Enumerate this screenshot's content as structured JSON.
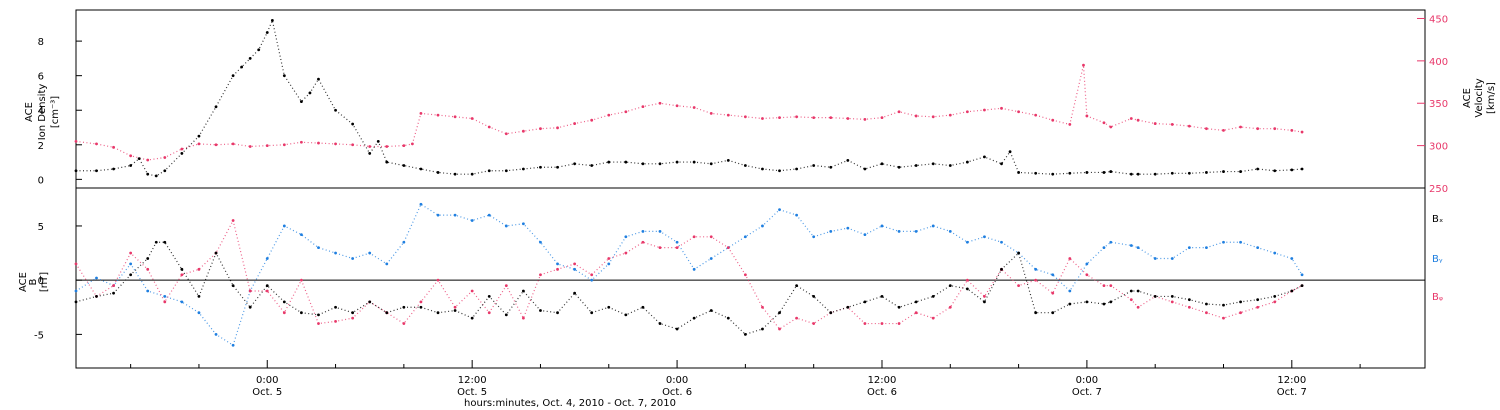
{
  "figure": {
    "xlabel": "hours:minutes, Oct.  4, 2010 - Oct.  7, 2010",
    "x_ticks": [
      {
        "value": 24,
        "line1": "0:00",
        "line2": "Oct. 5"
      },
      {
        "value": 36,
        "line1": "12:00",
        "line2": "Oct. 5"
      },
      {
        "value": 48,
        "line1": "0:00",
        "line2": "Oct. 6"
      },
      {
        "value": 60,
        "line1": "12:00",
        "line2": "Oct. 6"
      },
      {
        "value": 72,
        "line1": "0:00",
        "line2": "Oct. 7"
      },
      {
        "value": 84,
        "line1": "12:00",
        "line2": "Oct. 7"
      }
    ],
    "colors": {
      "black": "#000000",
      "pink": "#e8386a",
      "blue": "#1f7fe0"
    }
  },
  "chart_data": [
    {
      "type": "scatter",
      "panel": "top",
      "xlim": [
        12.8,
        91.8
      ],
      "ylabel_left": [
        "ACE",
        "Ion Density",
        "[cm⁻³]"
      ],
      "ylabel_right": [
        "ACE",
        "Velocity",
        "[km/s]"
      ],
      "ylim_left": [
        -0.5,
        9.8
      ],
      "ylim_right": [
        250,
        460
      ],
      "yticks_left": [
        "0",
        "2",
        "4",
        "6",
        "8"
      ],
      "yticks_right": [
        "250",
        "300",
        "350",
        "400",
        "450"
      ],
      "series": [
        {
          "axis": "left",
          "color": "black",
          "x": [
            12.8,
            14,
            15,
            16,
            16.5,
            17,
            17.5,
            18,
            19,
            20,
            21,
            22,
            22.5,
            23,
            23.5,
            24,
            24.3,
            25,
            26,
            26.5,
            27,
            28,
            29,
            30,
            30.5,
            31,
            32,
            33,
            34,
            35,
            36,
            37,
            38,
            39,
            40,
            41,
            42,
            43,
            44,
            45,
            46,
            47,
            48,
            49,
            50,
            51,
            52,
            53,
            54,
            55,
            56,
            57,
            58,
            59,
            60,
            61,
            62,
            63,
            64,
            65,
            66,
            67,
            67.5,
            68,
            69,
            70,
            71,
            72,
            73,
            73.4,
            74.6,
            75,
            76,
            77,
            78,
            79,
            80,
            81,
            82,
            83,
            84,
            84.6
          ],
          "y": [
            0.5,
            0.5,
            0.6,
            0.8,
            1.2,
            0.3,
            0.2,
            0.5,
            1.5,
            2.5,
            4.2,
            6,
            6.5,
            7,
            7.5,
            8.5,
            9.2,
            6,
            4.5,
            5,
            5.8,
            4,
            3.2,
            1.5,
            2.2,
            1,
            0.8,
            0.6,
            0.4,
            0.3,
            0.3,
            0.5,
            0.5,
            0.6,
            0.7,
            0.7,
            0.9,
            0.8,
            1,
            1,
            0.9,
            0.9,
            1,
            1,
            0.9,
            1.1,
            0.8,
            0.6,
            0.5,
            0.6,
            0.8,
            0.7,
            1.1,
            0.6,
            0.9,
            0.7,
            0.8,
            0.9,
            0.8,
            1,
            1.3,
            0.9,
            1.6,
            0.4,
            0.35,
            0.3,
            0.35,
            0.4,
            0.4,
            0.45,
            0.3,
            0.3,
            0.3,
            0.35,
            0.35,
            0.4,
            0.45,
            0.45,
            0.6,
            0.5,
            0.55,
            0.6
          ]
        },
        {
          "axis": "right",
          "color": "pink",
          "x": [
            12.8,
            14,
            15,
            16,
            17,
            18,
            19,
            20,
            21,
            22,
            23,
            24,
            25,
            26,
            27,
            28,
            29,
            30,
            31,
            32,
            32.5,
            33,
            34,
            35,
            36,
            37,
            38,
            39,
            40,
            41,
            42,
            43,
            44,
            45,
            46,
            47,
            48,
            49,
            50,
            51,
            52,
            53,
            54,
            55,
            56,
            57,
            58,
            59,
            60,
            61,
            62,
            63,
            64,
            65,
            66,
            67,
            68,
            69,
            70,
            71,
            71.8,
            72,
            73,
            73.4,
            74.6,
            75,
            76,
            77,
            78,
            79,
            80,
            81,
            82,
            83,
            84,
            84.6
          ],
          "y": [
            305,
            302,
            298,
            288,
            283,
            286,
            296,
            302,
            301,
            302,
            299,
            300,
            301,
            304,
            303,
            302,
            301,
            299,
            299,
            300,
            302,
            338,
            336,
            334,
            332,
            322,
            314,
            317,
            320,
            321,
            326,
            330,
            336,
            340,
            346,
            350,
            347,
            345,
            338,
            336,
            334,
            332,
            333,
            334,
            333,
            333,
            332,
            331,
            333,
            340,
            335,
            334,
            336,
            340,
            342,
            344,
            340,
            336,
            330,
            325,
            395,
            335,
            327,
            322,
            332,
            330,
            326,
            325,
            323,
            320,
            318,
            322,
            320,
            320,
            318,
            316
          ]
        }
      ]
    },
    {
      "type": "scatter",
      "panel": "bottom",
      "xlim": [
        12.8,
        91.8
      ],
      "ylabel_left": [
        "ACE",
        "B",
        "[nT]"
      ],
      "ylim": [
        -8.1,
        8.5
      ],
      "yticks": [
        "-5",
        "0",
        "5"
      ],
      "legend": [
        "Bₓ",
        "Bᵧ",
        "Bᵩ"
      ],
      "series": [
        {
          "name": "Bx",
          "color": "black",
          "x": [
            12.8,
            14,
            15,
            16,
            17,
            17.5,
            18,
            19,
            20,
            21,
            22,
            23,
            24,
            25,
            26,
            27,
            28,
            29,
            30,
            31,
            32,
            33,
            34,
            35,
            36,
            37,
            38,
            39,
            40,
            41,
            42,
            43,
            44,
            45,
            46,
            47,
            48,
            49,
            50,
            51,
            52,
            53,
            54,
            55,
            56,
            57,
            58,
            59,
            60,
            61,
            62,
            63,
            64,
            65,
            66,
            67,
            68,
            69,
            70,
            71,
            72,
            73,
            73.4,
            74.6,
            75,
            76,
            77,
            78,
            79,
            80,
            81,
            82,
            83,
            84,
            84.6
          ],
          "y": [
            -2,
            -1.5,
            -1.2,
            0.5,
            2,
            3.5,
            3.5,
            1,
            -1.5,
            2.5,
            -0.5,
            -2.5,
            -0.5,
            -2,
            -3,
            -3.2,
            -2.5,
            -3,
            -2,
            -3,
            -2.5,
            -2.5,
            -3,
            -2.8,
            -3.5,
            -1.5,
            -3.2,
            -1,
            -2.8,
            -3,
            -1.2,
            -3,
            -2.5,
            -3.2,
            -2.5,
            -4,
            -4.5,
            -3.5,
            -2.8,
            -3.5,
            -5,
            -4.5,
            -3,
            -0.5,
            -1.5,
            -3,
            -2.5,
            -2,
            -1.5,
            -2.5,
            -2,
            -1.5,
            -0.5,
            -0.8,
            -2,
            1,
            2.5,
            -3,
            -3,
            -2.2,
            -2,
            -2.2,
            -2,
            -1,
            -1,
            -1.5,
            -1.5,
            -1.8,
            -2.2,
            -2.3,
            -2,
            -1.8,
            -1.5,
            -1,
            -0.5
          ]
        },
        {
          "name": "By",
          "color": "blue",
          "x": [
            12.8,
            14,
            15,
            16,
            17,
            18,
            19,
            20,
            21,
            22,
            23,
            24,
            25,
            26,
            27,
            28,
            29,
            30,
            31,
            32,
            33,
            34,
            35,
            36,
            37,
            38,
            39,
            40,
            41,
            42,
            43,
            44,
            45,
            46,
            47,
            48,
            49,
            50,
            51,
            52,
            53,
            54,
            55,
            56,
            57,
            58,
            59,
            60,
            61,
            62,
            63,
            64,
            65,
            66,
            67,
            68,
            69,
            70,
            71,
            72,
            73,
            73.4,
            74.6,
            75,
            76,
            77,
            78,
            79,
            80,
            81,
            82,
            83,
            84,
            84.6
          ],
          "y": [
            -1,
            0.2,
            -0.5,
            1.5,
            -1,
            -1.5,
            -2,
            -3,
            -5,
            -6,
            -1,
            2,
            5,
            4.2,
            3,
            2.5,
            2,
            2.5,
            1.5,
            3.5,
            7,
            6,
            6,
            5.5,
            6,
            5,
            5.2,
            3.5,
            1.5,
            1,
            0,
            1.5,
            4,
            4.5,
            4.5,
            3.5,
            1,
            2,
            3,
            4,
            5,
            6.5,
            6,
            4,
            4.5,
            4.8,
            4.2,
            5,
            4.5,
            4.5,
            5,
            4.5,
            3.5,
            4,
            3.5,
            2.5,
            1,
            0.5,
            -1,
            1.5,
            3,
            3.5,
            3.2,
            3,
            2,
            2,
            3,
            3,
            3.5,
            3.5,
            3,
            2.5,
            2,
            0.5
          ]
        },
        {
          "name": "Bz",
          "color": "pink",
          "x": [
            12.8,
            14,
            15,
            16,
            17,
            18,
            19,
            20,
            21,
            22,
            23,
            24,
            25,
            26,
            27,
            28,
            29,
            30,
            31,
            32,
            33,
            34,
            35,
            36,
            37,
            38,
            39,
            40,
            41,
            42,
            43,
            44,
            45,
            46,
            47,
            48,
            49,
            50,
            51,
            52,
            53,
            54,
            55,
            56,
            57,
            58,
            59,
            60,
            61,
            62,
            63,
            64,
            65,
            66,
            67,
            68,
            69,
            70,
            71,
            72,
            73,
            73.4,
            74.6,
            75,
            76,
            77,
            78,
            79,
            80,
            81,
            82,
            83,
            84,
            84.6
          ],
          "y": [
            1.5,
            -1.5,
            -0.5,
            2.5,
            1,
            -2,
            0.5,
            1,
            2.5,
            5.5,
            -1,
            -1,
            -3,
            0,
            -4,
            -3.8,
            -3.5,
            -2,
            -3,
            -4,
            -2,
            0,
            -2.5,
            -1,
            -3,
            -0.5,
            -3.5,
            0.5,
            1,
            1.5,
            0.5,
            2,
            2.5,
            3.5,
            3,
            3,
            4,
            4,
            3,
            0.5,
            -2.5,
            -4.5,
            -3.5,
            -4,
            -3,
            -2.5,
            -4,
            -4,
            -4,
            -3,
            -3.5,
            -2.5,
            0,
            -1.5,
            1,
            -0.5,
            0,
            -1.2,
            2,
            0.5,
            -0.5,
            -0.5,
            -1.8,
            -2.5,
            -1.5,
            -2,
            -2.5,
            -3,
            -3.5,
            -3,
            -2.5,
            -2,
            -1,
            -0.5
          ]
        }
      ]
    }
  ]
}
